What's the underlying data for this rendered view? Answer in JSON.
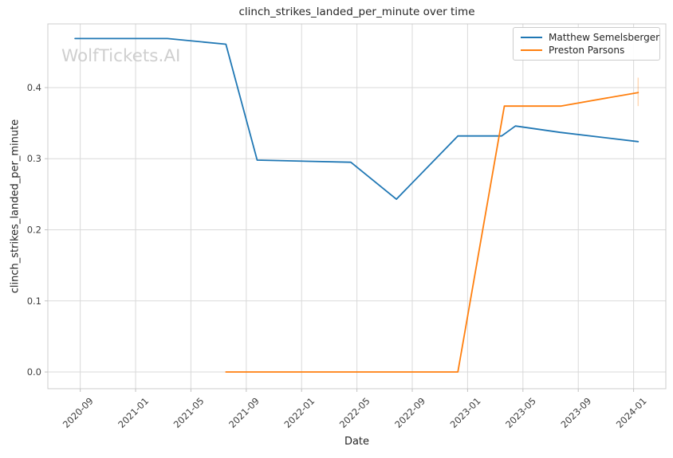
{
  "watermark": "WolfTickets.AI",
  "colors": {
    "background": "#ffffff",
    "grid": "#d9d9d9",
    "spine": "#cccccc",
    "tick": "#c2c2c2",
    "tick_text": "#3d3d3d",
    "title_text": "#262626",
    "watermark_text": "#cfcfcf",
    "series_blue": "#1f77b4",
    "series_orange": "#ff7f0e"
  },
  "legend": {
    "entries": [
      "Matthew Semelsberger",
      "Preston Parsons"
    ]
  },
  "chart_data": {
    "type": "line",
    "title": "clinch_strikes_landed_per_minute over time",
    "xlabel": "Date",
    "ylabel": "clinch_strikes_landed_per_minute",
    "grid": true,
    "legend_position": "upper right",
    "x_tick_labels": [
      "2020-09",
      "2021-01",
      "2021-05",
      "2021-09",
      "2022-01",
      "2022-05",
      "2022-09",
      "2023-01",
      "2023-05",
      "2023-09",
      "2024-01"
    ],
    "y_ticks": [
      0.0,
      0.1,
      0.2,
      0.3,
      0.4
    ],
    "y_tick_labels": [
      "0.0",
      "0.1",
      "0.2",
      "0.3",
      "0.4"
    ],
    "xlim": [
      "2020-06-21",
      "2024-03-11"
    ],
    "ylim": [
      -0.0235,
      0.4896
    ],
    "series": [
      {
        "name": "Matthew Semelsberger",
        "color": "#1f77b4",
        "points": [
          [
            "2020-08-20",
            0.469
          ],
          [
            "2021-03-10",
            0.469
          ],
          [
            "2021-07-17",
            0.461
          ],
          [
            "2021-09-25",
            0.298
          ],
          [
            "2022-04-18",
            0.295
          ],
          [
            "2022-07-27",
            0.243
          ],
          [
            "2022-12-10",
            0.332
          ],
          [
            "2023-03-15",
            0.332
          ],
          [
            "2023-04-15",
            0.346
          ],
          [
            "2023-07-22",
            0.337
          ],
          [
            "2024-01-11",
            0.324
          ]
        ]
      },
      {
        "name": "Preston Parsons",
        "color": "#ff7f0e",
        "points": [
          [
            "2021-07-17",
            0.0
          ],
          [
            "2022-12-10",
            0.0
          ],
          [
            "2023-03-21",
            0.374
          ],
          [
            "2023-07-23",
            0.374
          ],
          [
            "2024-01-11",
            0.393
          ]
        ],
        "error_bar": {
          "date": "2024-01-11",
          "low": 0.374,
          "high": 0.414
        }
      }
    ]
  }
}
